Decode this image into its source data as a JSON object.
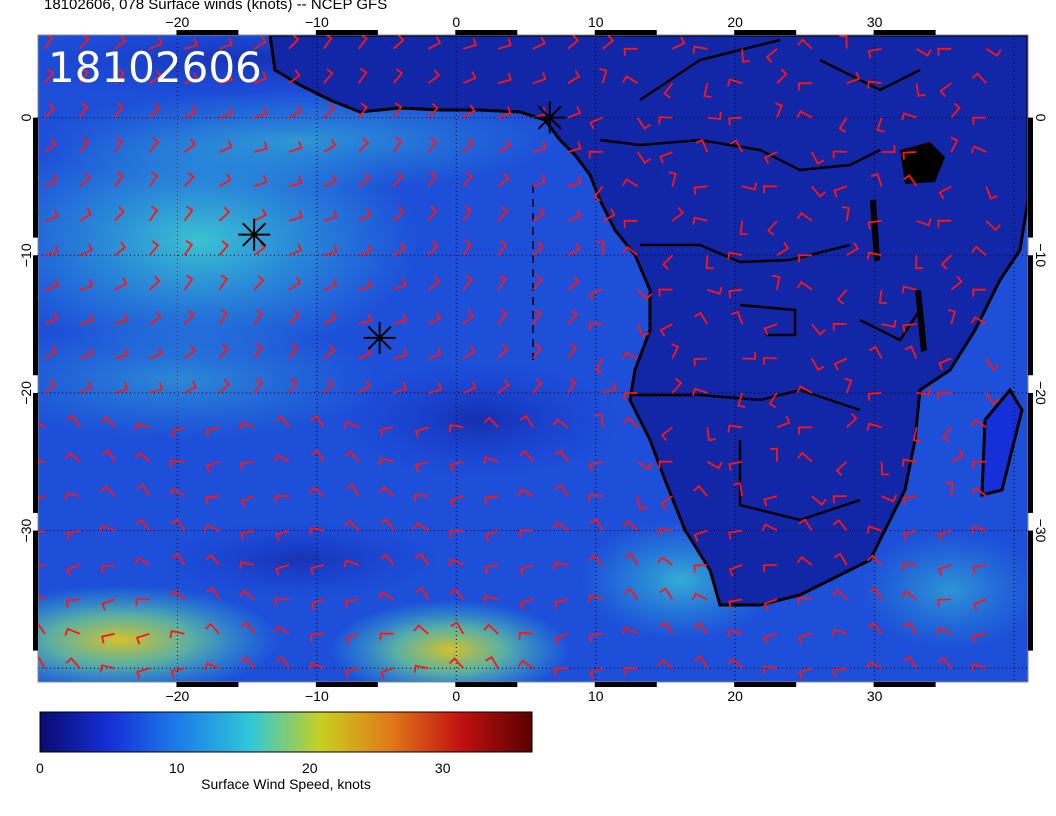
{
  "title": "18102606, 078 Surface winds (knots) -- NCEP GFS",
  "stamp": "18102606",
  "lon_ticks": [
    "-20",
    "-10",
    "0",
    "10",
    "20",
    "30"
  ],
  "lat_ticks": [
    "0",
    "-10",
    "-20",
    "-30"
  ],
  "colorbar": {
    "title": "Surface Wind Speed, knots",
    "labels": [
      "0",
      "10",
      "20",
      "30"
    ],
    "range": [
      0,
      37
    ],
    "stops": [
      "#0a0a6e",
      "#1530d8",
      "#1e7ee8",
      "#30c8d8",
      "#c8d020",
      "#e07818",
      "#c01010",
      "#5a0000"
    ]
  },
  "chart_data": {
    "type": "map",
    "xlim": [
      -30,
      41
    ],
    "ylim": [
      -41,
      6
    ],
    "grid": true,
    "storm_markers": [
      {
        "lon": -14.5,
        "lat": -8.5
      },
      {
        "lon": -5.5,
        "lat": -16.0
      },
      {
        "lon": 6.7,
        "lat": 0.0
      }
    ]
  }
}
